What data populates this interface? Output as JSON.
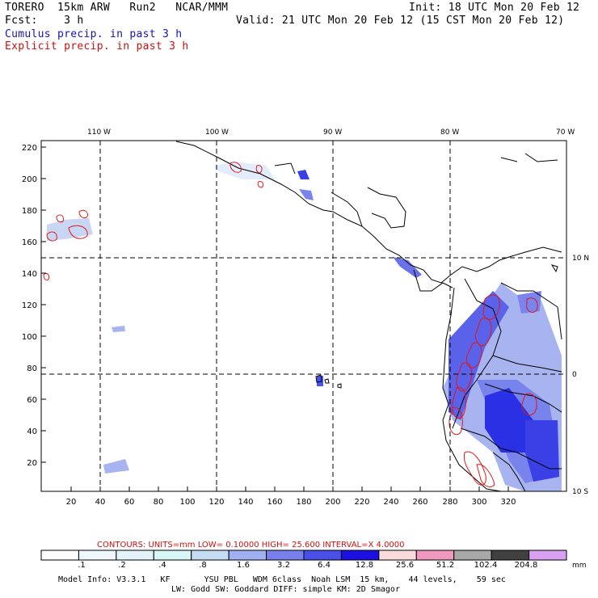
{
  "header": {
    "model_line": "TORERO  15km ARW   Run2   NCAR/MMM",
    "init_line": "Init: 18 UTC Mon 20 Feb 12",
    "fcst_line": "Fcst:    3 h",
    "valid_line": "Valid: 21 UTC Mon 20 Feb 12 (15 CST Mon 20 Feb 12)",
    "cumulus_label": "Cumulus precip. in past 3 h",
    "explicit_label": "Explicit precip. in past 3 h"
  },
  "map": {
    "top_lon_labels": [
      "110 W",
      "100 W",
      "90 W",
      "80 W",
      "70 W"
    ],
    "right_lat_labels": [
      "10 N",
      "0",
      "10 S"
    ],
    "y_ticks": [
      "220",
      "200",
      "180",
      "160",
      "140",
      "120",
      "100",
      "80",
      "60",
      "40",
      "20"
    ],
    "x_ticks": [
      "20",
      "40",
      "60",
      "80",
      "100",
      "120",
      "140",
      "160",
      "180",
      "200",
      "220",
      "240",
      "260",
      "280",
      "300",
      "320"
    ]
  },
  "contour_info": "CONTOURS:  UNITS=mm  LOW= 0.10000      HIGH=  25.600      INTERVAL=X  4.0000",
  "colorbar": {
    "colors": [
      "#ffffff",
      "#f0f8ff",
      "#e4f2fa",
      "#d8f6f6",
      "#c4dcf4",
      "#a0b0f0",
      "#7880ec",
      "#4850e8",
      "#1c10e0",
      "#fadcdc",
      "#f098c0",
      "#a8a8a8",
      "#404040",
      "#d8a0f0"
    ],
    "labels": [
      ".1",
      ".2",
      ".4",
      ".8",
      "1.6",
      "3.2",
      "6.4",
      "12.8",
      "25.6",
      "51.2",
      "102.4",
      "204.8"
    ],
    "unit": "mm"
  },
  "footer": {
    "line1": "Model Info: V3.3.1   KF       YSU PBL   WDM 6class  Noah LSM  15 km,    44 levels,    59 sec",
    "line2": "LW: Godd SW: Goddard DIFF: simple KM: 2D Smagor"
  }
}
